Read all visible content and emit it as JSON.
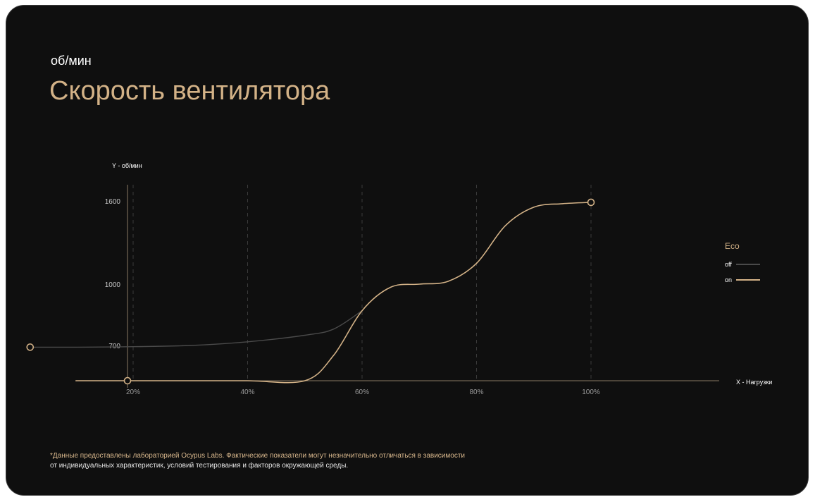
{
  "header": {
    "subtitle": "об/мин",
    "title": "Скорость вентилятора"
  },
  "footnote": {
    "line1": "*Данные предоставлены лабораторией Ocypus Labs. Фактические показатели могут незначительно отличаться в зависимости",
    "line2": "от индивидуальных характеристик, условий тестирования и факторов окружающей среды."
  },
  "colors": {
    "accent": "#d3b287",
    "off_line": "#4a4a4a",
    "grid": "#3a3a3a",
    "axis": "#8a7a63"
  },
  "chart_data": {
    "type": "line",
    "title": "Скорость вентилятора",
    "ylabel": "Y - об/мин",
    "xlabel": "X - Нагрузки",
    "x_ticks": [
      {
        "value": 20,
        "label": "20%"
      },
      {
        "value": 40,
        "label": "40%"
      },
      {
        "value": 60,
        "label": "60%"
      },
      {
        "value": 80,
        "label": "80%"
      },
      {
        "value": 100,
        "label": "100%"
      }
    ],
    "y_ticks": [
      {
        "value": 700,
        "label": "700"
      },
      {
        "value": 1000,
        "label": "1000"
      },
      {
        "value": 1600,
        "label": "1600"
      }
    ],
    "legend": {
      "title": "Eco",
      "position": "right",
      "entries": [
        {
          "name": "off",
          "color": "#4a4a4a"
        },
        {
          "name": "on",
          "color": "#d3b287"
        }
      ]
    },
    "series": [
      {
        "name": "off",
        "color": "#4a4a4a",
        "points": [
          [
            2,
            690
          ],
          [
            10,
            690
          ],
          [
            20,
            693
          ],
          [
            30,
            700
          ],
          [
            40,
            718
          ],
          [
            50,
            750
          ],
          [
            55,
            780
          ],
          [
            60,
            870
          ]
        ]
      },
      {
        "name": "on",
        "color": "#d3b287",
        "points": [
          [
            0,
            490
          ],
          [
            10,
            490
          ],
          [
            20,
            490
          ],
          [
            30,
            490
          ],
          [
            40,
            490
          ],
          [
            50,
            490
          ],
          [
            55,
            640
          ],
          [
            60,
            870
          ],
          [
            65,
            985
          ],
          [
            70,
            1000
          ],
          [
            75,
            1020
          ],
          [
            80,
            1150
          ],
          [
            85,
            1420
          ],
          [
            90,
            1555
          ],
          [
            95,
            1580
          ],
          [
            100,
            1590
          ]
        ]
      }
    ]
  }
}
